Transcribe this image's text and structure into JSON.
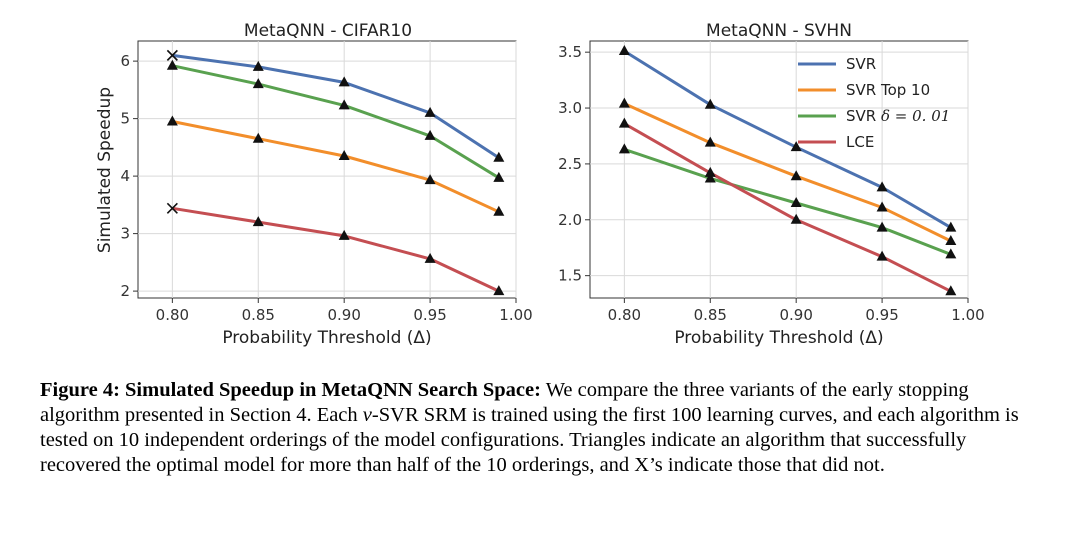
{
  "chart_data": [
    {
      "type": "line",
      "title": "MetaQNN - CIFAR10",
      "xlabel": "Probability Threshold (Δ)",
      "ylabel": "Simulated Speedup",
      "xlim": [
        0.78,
        1.0
      ],
      "ylim": [
        1.88,
        6.35
      ],
      "xticks": [
        0.8,
        0.85,
        0.9,
        0.95,
        1.0
      ],
      "xtick_labels": [
        "0.80",
        "0.85",
        "0.90",
        "0.95",
        "1.00"
      ],
      "yticks": [
        2,
        3,
        4,
        5,
        6
      ],
      "ytick_labels": [
        "2",
        "3",
        "4",
        "5",
        "6"
      ],
      "grid": true,
      "x": [
        0.8,
        0.85,
        0.9,
        0.95,
        0.99
      ],
      "series": [
        {
          "name": "SVR",
          "color": "#4c72b0",
          "values": [
            6.1,
            5.9,
            5.63,
            5.1,
            4.32
          ],
          "markers": [
            "x",
            "triangle",
            "triangle",
            "triangle",
            "triangle"
          ]
        },
        {
          "name": "SVR Top 10",
          "color": "#f28e2b",
          "values": [
            4.95,
            4.65,
            4.35,
            3.93,
            3.38
          ],
          "markers": [
            "triangle",
            "triangle",
            "triangle",
            "triangle",
            "triangle"
          ]
        },
        {
          "name": "SVR δ = 0.01",
          "color": "#59a14f",
          "values": [
            5.92,
            5.6,
            5.23,
            4.7,
            3.97
          ],
          "markers": [
            "triangle",
            "triangle",
            "triangle",
            "triangle",
            "triangle"
          ]
        },
        {
          "name": "LCE",
          "color": "#c44e52",
          "values": [
            3.44,
            3.2,
            2.96,
            2.56,
            2.0
          ],
          "markers": [
            "x",
            "triangle",
            "triangle",
            "triangle",
            "triangle"
          ]
        }
      ]
    },
    {
      "type": "line",
      "title": "MetaQNN - SVHN",
      "xlabel": "Probability Threshold (Δ)",
      "ylabel": "",
      "xlim": [
        0.78,
        1.0
      ],
      "ylim": [
        1.3,
        3.6
      ],
      "xticks": [
        0.8,
        0.85,
        0.9,
        0.95,
        1.0
      ],
      "xtick_labels": [
        "0.80",
        "0.85",
        "0.90",
        "0.95",
        "1.00"
      ],
      "yticks": [
        1.5,
        2.0,
        2.5,
        3.0,
        3.5
      ],
      "ytick_labels": [
        "1.5",
        "2.0",
        "2.5",
        "3.0",
        "3.5"
      ],
      "grid": true,
      "legend": "top-right",
      "legend_entries": [
        {
          "label": "SVR",
          "color": "#4c72b0"
        },
        {
          "label": "SVR Top 10",
          "color": "#f28e2b"
        },
        {
          "label_prefix": "SVR ",
          "label_math": "δ = 0. 01",
          "color": "#59a14f"
        },
        {
          "label": "LCE",
          "color": "#c44e52"
        }
      ],
      "x": [
        0.8,
        0.85,
        0.9,
        0.95,
        0.99
      ],
      "series": [
        {
          "name": "SVR",
          "color": "#4c72b0",
          "values": [
            3.51,
            3.03,
            2.65,
            2.29,
            1.93
          ],
          "markers": [
            "triangle",
            "triangle",
            "triangle",
            "triangle",
            "triangle"
          ]
        },
        {
          "name": "SVR Top 10",
          "color": "#f28e2b",
          "values": [
            3.04,
            2.69,
            2.39,
            2.11,
            1.81
          ],
          "markers": [
            "triangle",
            "triangle",
            "triangle",
            "triangle",
            "triangle"
          ]
        },
        {
          "name": "SVR δ = 0.01",
          "color": "#59a14f",
          "values": [
            2.63,
            2.37,
            2.15,
            1.93,
            1.69
          ],
          "markers": [
            "triangle",
            "triangle",
            "triangle",
            "triangle",
            "triangle"
          ]
        },
        {
          "name": "LCE",
          "color": "#c44e52",
          "values": [
            2.86,
            2.42,
            2.0,
            1.67,
            1.36
          ],
          "markers": [
            "triangle",
            "triangle",
            "triangle",
            "triangle",
            "triangle"
          ]
        }
      ]
    }
  ],
  "caption": {
    "lead": "Figure 4: Simulated Speedup in MetaQNN Search Space:",
    "part1": " We compare the three variants of the early stopping algorithm presented in Section 4. Each ",
    "nu": "ν",
    "part2": "-SVR SRM is trained using the first 100 learning curves, and each algorithm is tested on 10 independent orderings of the model configurations. Triangles indicate an algorithm that successfully recovered the optimal model for more than half of the 10 orderings, and X’s indicate those that did not."
  }
}
